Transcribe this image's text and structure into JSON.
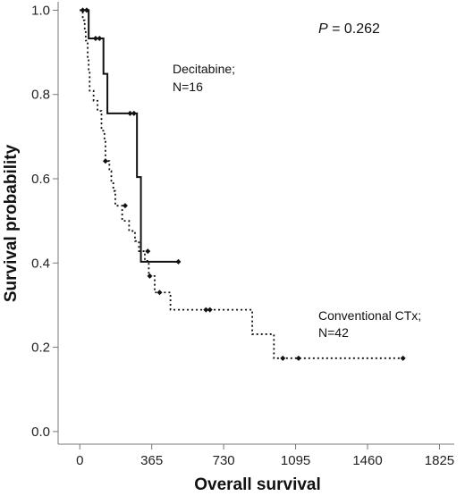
{
  "chart_data": {
    "type": "line",
    "subtype": "kaplan-meier",
    "xlabel": "Overall survival",
    "ylabel": "Survival probability",
    "xlim": [
      -110,
      1900
    ],
    "ylim": [
      -0.03,
      1.02
    ],
    "x_ticks": [
      0,
      365,
      730,
      1095,
      1460,
      1825
    ],
    "y_ticks": [
      0.0,
      0.2,
      0.4,
      0.6,
      0.8,
      1.0
    ],
    "y_tick_labels": [
      "0.0",
      "0.2",
      "0.4",
      "0.6",
      "0.8",
      "1.0"
    ],
    "pvalue": {
      "italic": "P",
      "text": " = 0.262"
    },
    "grid": false,
    "series": [
      {
        "style": "solid",
        "label_lines": [
          "Decitabine;",
          "N=16"
        ],
        "steps": [
          [
            0,
            1.0
          ],
          [
            45,
            0.933
          ],
          [
            120,
            0.849
          ],
          [
            140,
            0.755
          ],
          [
            290,
            0.604
          ],
          [
            310,
            0.403
          ],
          [
            500,
            0.403
          ]
        ],
        "censored": [
          [
            15,
            1.0
          ],
          [
            35,
            1.0
          ],
          [
            80,
            0.933
          ],
          [
            100,
            0.933
          ],
          [
            255,
            0.755
          ],
          [
            275,
            0.755
          ],
          [
            500,
            0.403
          ]
        ]
      },
      {
        "style": "dotted",
        "label_lines": [
          "Conventional CTx;",
          "N=42"
        ],
        "steps": [
          [
            0,
            1.0
          ],
          [
            15,
            0.976
          ],
          [
            25,
            0.952
          ],
          [
            30,
            0.928
          ],
          [
            40,
            0.881
          ],
          [
            45,
            0.857
          ],
          [
            50,
            0.809
          ],
          [
            70,
            0.785
          ],
          [
            90,
            0.761
          ],
          [
            110,
            0.714
          ],
          [
            125,
            0.69
          ],
          [
            130,
            0.642
          ],
          [
            150,
            0.618
          ],
          [
            160,
            0.595
          ],
          [
            170,
            0.571
          ],
          [
            180,
            0.536
          ],
          [
            215,
            0.5
          ],
          [
            250,
            0.476
          ],
          [
            280,
            0.452
          ],
          [
            300,
            0.428
          ],
          [
            330,
            0.405
          ],
          [
            350,
            0.369
          ],
          [
            380,
            0.33
          ],
          [
            460,
            0.289
          ],
          [
            875,
            0.231
          ],
          [
            985,
            0.174
          ],
          [
            1640,
            0.174
          ]
        ],
        "censored": [
          [
            130,
            0.642
          ],
          [
            230,
            0.536
          ],
          [
            345,
            0.428
          ],
          [
            355,
            0.369
          ],
          [
            405,
            0.33
          ],
          [
            640,
            0.289
          ],
          [
            660,
            0.289
          ],
          [
            1030,
            0.174
          ],
          [
            1110,
            0.174
          ],
          [
            1640,
            0.174
          ]
        ]
      }
    ]
  }
}
